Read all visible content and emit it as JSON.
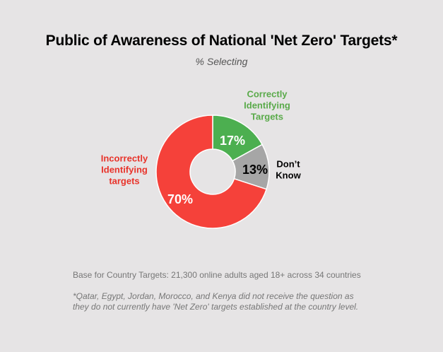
{
  "chart_data": {
    "type": "pie",
    "title": "Public of Awareness of National 'Net Zero' Targets*",
    "subtitle": "% Selecting",
    "donut": true,
    "slices": [
      {
        "name": "Correctly Identifying Targets",
        "label_lines": [
          "Correctly",
          "Identifying",
          "Targets"
        ],
        "value": 17,
        "value_label": "17%",
        "color": "#4caf50"
      },
      {
        "name": "Don't Know",
        "label_lines": [
          "Don’t",
          "Know"
        ],
        "value": 13,
        "value_label": "13%",
        "color": "#a6a6a6"
      },
      {
        "name": "Incorrectly Identifying targets",
        "label_lines": [
          "Incorrectly",
          "Identifying",
          "targets"
        ],
        "value": 70,
        "value_label": "70%",
        "color": "#f5413a"
      }
    ]
  },
  "footer": {
    "base": "Base for Country Targets: 21,300 online adults aged 18+ across 34 countries",
    "note": "*Qatar, Egypt, Jordan, Morocco, and Kenya did not receive the question as they do not currently have 'Net Zero' targets established at the country level."
  }
}
